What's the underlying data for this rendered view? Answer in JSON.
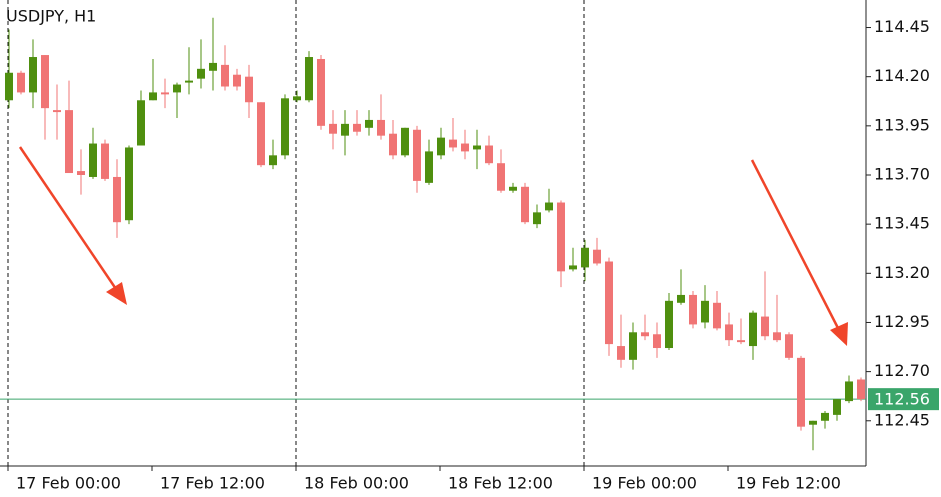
{
  "chart_data": {
    "type": "candlestick",
    "title": "USDJPY, H1",
    "categories": [
      "17 Feb 00:00",
      null,
      null,
      null,
      null,
      null,
      null,
      null,
      null,
      null,
      null,
      null,
      "17 Feb 12:00",
      null,
      null,
      null,
      null,
      null,
      null,
      null,
      null,
      null,
      null,
      null,
      "18 Feb 00:00",
      null,
      null,
      null,
      null,
      null,
      null,
      null,
      null,
      null,
      null,
      null,
      "18 Feb 12:00",
      null,
      null,
      null,
      null,
      null,
      null,
      null,
      null,
      null,
      null,
      null,
      "19 Feb 00:00",
      null,
      null,
      null,
      null,
      null,
      null,
      null,
      null,
      null,
      null,
      null,
      "19 Feb 12:00",
      null,
      null,
      null,
      null,
      null,
      null,
      null,
      null,
      null,
      null,
      null
    ],
    "open": [
      114.08,
      114.22,
      114.12,
      114.31,
      114.03,
      114.03,
      113.72,
      113.69,
      113.86,
      113.69,
      113.47,
      113.85,
      114.08,
      114.12,
      114.12,
      114.17,
      114.19,
      114.23,
      114.26,
      114.21,
      114.2,
      114.07,
      113.75,
      113.8,
      114.08,
      114.08,
      114.29,
      113.96,
      113.9,
      113.96,
      113.94,
      113.98,
      113.91,
      113.8,
      113.93,
      113.66,
      113.8,
      113.88,
      113.86,
      113.83,
      113.85,
      113.76,
      113.62,
      113.64,
      113.45,
      113.52,
      113.56,
      113.22,
      113.23,
      113.32,
      113.26,
      112.83,
      112.76,
      112.9,
      112.89,
      112.82,
      113.05,
      113.09,
      112.95,
      113.05,
      112.94,
      112.86,
      112.83,
      112.98,
      112.9,
      112.89,
      112.77,
      112.43,
      112.45,
      112.48,
      112.55,
      112.66
    ],
    "high": [
      114.44,
      114.23,
      114.39,
      114.31,
      114.16,
      114.18,
      113.83,
      113.94,
      113.88,
      113.78,
      113.85,
      114.13,
      114.29,
      114.19,
      114.17,
      114.35,
      114.39,
      114.5,
      114.36,
      114.24,
      114.26,
      114.07,
      113.88,
      114.11,
      114.13,
      114.33,
      114.31,
      114.03,
      114.03,
      114.03,
      114.03,
      114.11,
      113.98,
      113.94,
      113.95,
      113.88,
      113.94,
      113.99,
      113.93,
      113.93,
      113.9,
      113.83,
      113.66,
      113.66,
      113.55,
      113.63,
      113.57,
      113.33,
      113.37,
      113.38,
      113.28,
      112.99,
      112.95,
      112.99,
      112.95,
      113.1,
      113.22,
      113.11,
      113.14,
      113.11,
      113.0,
      112.97,
      113.01,
      113.21,
      113.09,
      112.9,
      112.78,
      112.45,
      112.5,
      112.56,
      112.68,
      112.67
    ],
    "low": [
      114.04,
      114.11,
      114.04,
      113.88,
      113.88,
      113.71,
      113.6,
      113.68,
      113.67,
      113.38,
      113.45,
      113.85,
      114.08,
      114.04,
      113.99,
      114.11,
      114.14,
      114.13,
      114.13,
      114.13,
      113.99,
      113.74,
      113.73,
      113.78,
      114.07,
      114.07,
      113.93,
      113.83,
      113.8,
      113.9,
      113.9,
      113.88,
      113.78,
      113.79,
      113.61,
      113.65,
      113.78,
      113.82,
      113.78,
      113.73,
      113.75,
      113.61,
      113.61,
      113.45,
      113.43,
      113.51,
      113.13,
      113.21,
      113.16,
      113.24,
      112.78,
      112.72,
      112.71,
      112.86,
      112.77,
      112.81,
      113.04,
      112.92,
      112.92,
      112.91,
      112.83,
      112.84,
      112.76,
      112.86,
      112.85,
      112.76,
      112.4,
      112.3,
      112.41,
      112.45,
      112.54,
      112.55
    ],
    "close": [
      114.22,
      114.12,
      114.3,
      114.04,
      114.02,
      113.71,
      113.7,
      113.86,
      113.68,
      113.46,
      113.84,
      114.08,
      114.12,
      114.11,
      114.16,
      114.18,
      114.24,
      114.27,
      114.15,
      114.15,
      114.07,
      113.75,
      113.8,
      114.09,
      114.1,
      114.3,
      113.95,
      113.91,
      113.96,
      113.92,
      113.98,
      113.9,
      113.8,
      113.94,
      113.67,
      113.82,
      113.89,
      113.84,
      113.82,
      113.85,
      113.76,
      113.62,
      113.64,
      113.46,
      113.51,
      113.56,
      113.21,
      113.24,
      113.33,
      113.25,
      112.84,
      112.76,
      112.9,
      112.88,
      112.82,
      113.06,
      113.09,
      112.94,
      113.06,
      112.92,
      112.86,
      112.85,
      113.0,
      112.88,
      112.86,
      112.77,
      112.42,
      112.45,
      112.49,
      112.56,
      112.65,
      112.56
    ],
    "up_color": "#4f8f0f",
    "down_color": "#f07474",
    "ylim": [
      112.22,
      114.59
    ],
    "yticks": [
      114.45,
      {
        "value": 114.2,
        "label": "114.20"
      },
      113.95,
      {
        "value": 113.7,
        "label": "113.70"
      },
      113.45,
      {
        "value": 113.2,
        "label": "113.20"
      },
      112.95,
      {
        "value": 112.7,
        "label": "112.70"
      },
      112.45
    ],
    "current_price": 112.56,
    "current_price_color": "#3aa56a"
  }
}
